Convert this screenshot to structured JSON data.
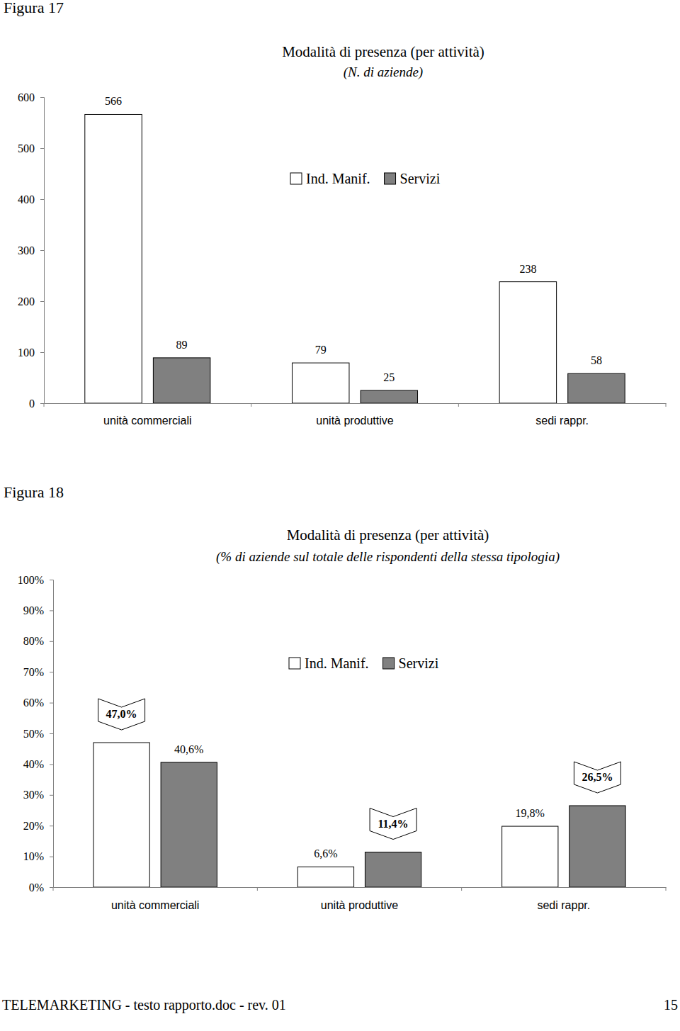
{
  "chart_data": [
    {
      "type": "bar",
      "annotations": [
        "Figura 17"
      ],
      "title": "Modalità di presenza (per attività)",
      "subtitle": "(N. di aziende)",
      "categories": [
        "unità commerciali",
        "unità produttive",
        "sedi rappr."
      ],
      "series": [
        {
          "name": "Ind. Manif.",
          "color": "#ffffff",
          "values": [
            566,
            79,
            238
          ]
        },
        {
          "name": "Servizi",
          "color": "#808080",
          "values": [
            89,
            25,
            58
          ]
        }
      ],
      "ylim": [
        0,
        600
      ],
      "yticks": [
        0,
        100,
        200,
        300,
        400,
        500,
        600
      ],
      "grid": false,
      "legend": "top",
      "data_labels": true
    },
    {
      "type": "bar",
      "annotations": [
        "Figura 18"
      ],
      "title": "Modalità di presenza (per attività)",
      "subtitle": "(% di aziende sul totale delle rispondenti della stessa tipologia)",
      "categories": [
        "unità commerciali",
        "unità produttive",
        "sedi rappr."
      ],
      "series": [
        {
          "name": "Ind. Manif.",
          "color": "#ffffff",
          "values": [
            47.0,
            6.6,
            19.8
          ],
          "value_labels": [
            "47,0%",
            "6,6%",
            "19,8%"
          ]
        },
        {
          "name": "Servizi",
          "color": "#808080",
          "values": [
            40.6,
            11.4,
            26.5
          ],
          "value_labels": [
            "40,6%",
            "11,4%",
            "26,5%"
          ]
        }
      ],
      "ylim": [
        0,
        100
      ],
      "yticks": [
        {
          "value": 0,
          "label": "0%"
        },
        {
          "value": 10,
          "label": "10%"
        },
        {
          "value": 20,
          "label": "20%"
        },
        {
          "value": 30,
          "label": "30%"
        },
        {
          "value": 40,
          "label": "40%"
        },
        {
          "value": 50,
          "label": "50%"
        },
        {
          "value": 60,
          "label": "60%"
        },
        {
          "value": 70,
          "label": "70%"
        },
        {
          "value": 80,
          "label": "80%"
        },
        {
          "value": 90,
          "label": "90%"
        },
        {
          "value": 100,
          "label": "100%"
        }
      ],
      "grid": false,
      "legend": "top",
      "data_labels": true
    }
  ],
  "footer": {
    "text": "TELEMARKETING - testo rapporto.doc - rev. 01",
    "page": "15"
  }
}
